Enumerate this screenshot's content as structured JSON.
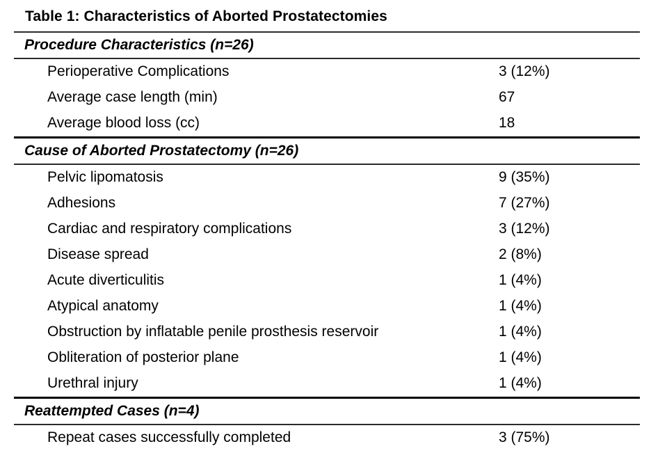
{
  "page": {
    "title": "Table 1: Characteristics of Aborted Prostatectomies"
  },
  "colors": {
    "text": "#000000",
    "rule": "#2a2a2a",
    "rule_heavy": "#000000",
    "background": "#ffffff"
  },
  "table": {
    "sections": [
      {
        "header": "Procedure Characteristics (n=26)",
        "rows": [
          {
            "label": "Perioperative Complications",
            "value": "3 (12%)"
          },
          {
            "label": "Average case length (min)",
            "value": "67"
          },
          {
            "label": "Average blood loss (cc)",
            "value": "18"
          }
        ]
      },
      {
        "header": "Cause of Aborted Prostatectomy (n=26)",
        "rows": [
          {
            "label": "Pelvic lipomatosis",
            "value": "9 (35%)"
          },
          {
            "label": "Adhesions",
            "value": "7 (27%)"
          },
          {
            "label": "Cardiac and respiratory complications",
            "value": "3 (12%)"
          },
          {
            "label": "Disease spread",
            "value": "2 (8%)"
          },
          {
            "label": "Acute diverticulitis",
            "value": "1 (4%)"
          },
          {
            "label": "Atypical anatomy",
            "value": "1 (4%)"
          },
          {
            "label": "Obstruction by inflatable penile prosthesis reservoir",
            "value": "1 (4%)"
          },
          {
            "label": "Obliteration of posterior plane",
            "value": "1 (4%)"
          },
          {
            "label": "Urethral injury",
            "value": "1 (4%)"
          }
        ]
      },
      {
        "header": "Reattempted Cases (n=4)",
        "rows": [
          {
            "label": "Repeat cases successfully completed",
            "value": "3 (75%)"
          }
        ]
      }
    ]
  }
}
